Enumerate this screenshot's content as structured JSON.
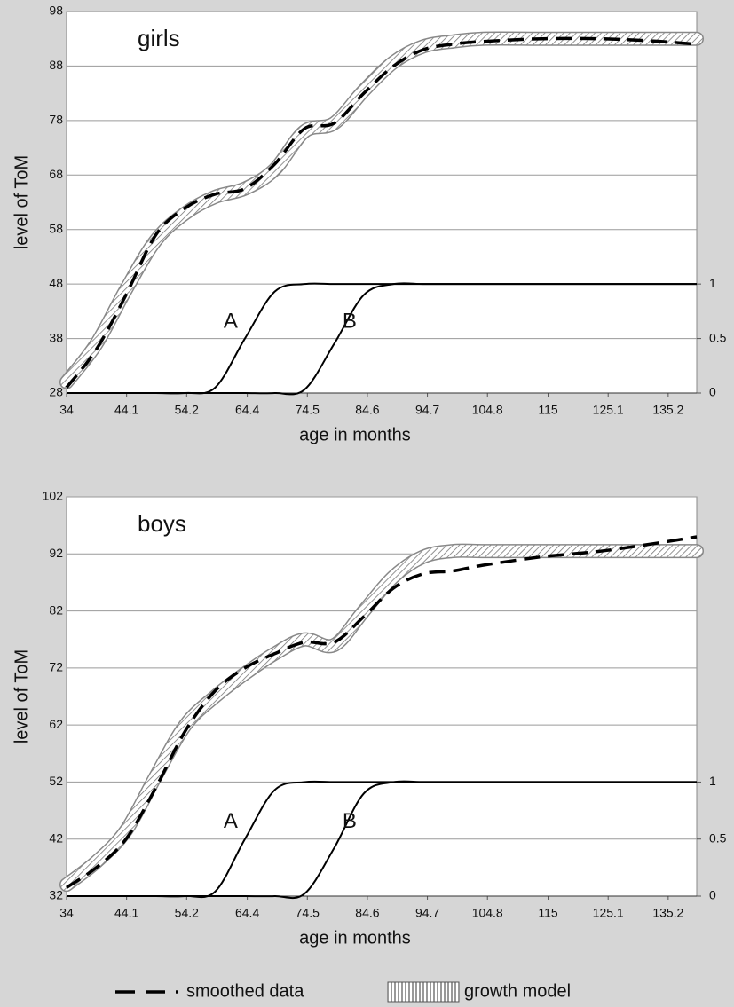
{
  "chart_data": [
    {
      "type": "line",
      "title": "girls",
      "x_label": "age in months",
      "y_label": "level of ToM",
      "x": [
        34,
        39,
        44,
        49,
        54,
        59,
        64,
        69,
        74,
        79,
        84,
        89,
        94,
        99,
        104,
        114,
        124,
        134,
        140
      ],
      "xlim": [
        34,
        140
      ],
      "xticks": [
        34,
        44.1,
        54.2,
        64.4,
        74.5,
        84.6,
        94.7,
        104.8,
        115,
        125.1,
        135.2
      ],
      "ylim": [
        28,
        98
      ],
      "yticks": [
        28,
        38,
        48,
        58,
        68,
        78,
        88,
        98
      ],
      "y2lim": [
        0,
        3.5
      ],
      "y2ticks": [
        0,
        0.5,
        1
      ],
      "grid": true,
      "series": [
        {
          "name": "smoothed data",
          "color": "#000000",
          "style": "dashed",
          "values": [
            29,
            36,
            46,
            57,
            62,
            64.5,
            65.5,
            70,
            76.5,
            77.5,
            83,
            88,
            91,
            92,
            92.5,
            93,
            93,
            92.5,
            92
          ]
        },
        {
          "name": "growth model",
          "color": "#888888",
          "style": "band",
          "values": [
            30,
            37,
            47,
            56,
            61,
            64,
            65.5,
            69,
            76,
            77.5,
            83.5,
            88.7,
            91.6,
            92.5,
            93,
            93,
            93,
            93,
            93
          ]
        },
        {
          "name": "A",
          "color": "#000000",
          "style": "solid",
          "axis": "y2",
          "values": [
            0,
            0,
            0,
            0,
            0,
            0.05,
            0.5,
            0.93,
            1,
            1,
            1,
            1,
            1,
            1,
            1,
            1,
            1,
            1,
            1
          ]
        },
        {
          "name": "B",
          "color": "#000000",
          "style": "solid",
          "axis": "y2",
          "values": [
            0,
            0,
            0,
            0,
            0,
            0,
            0,
            0,
            0.03,
            0.45,
            0.9,
            1,
            1,
            1,
            1,
            1,
            1,
            1,
            1
          ]
        }
      ]
    },
    {
      "type": "line",
      "title": "boys",
      "x_label": "age in months",
      "y_label": "level of ToM",
      "x": [
        34,
        39,
        44,
        49,
        54,
        59,
        64,
        69,
        74,
        79,
        84,
        89,
        94,
        99,
        104,
        114,
        124,
        134,
        140
      ],
      "xlim": [
        34,
        140
      ],
      "xticks": [
        34,
        44.1,
        54.2,
        64.4,
        74.5,
        84.6,
        94.7,
        104.8,
        115,
        125.1,
        135.2
      ],
      "ylim": [
        32,
        102
      ],
      "yticks": [
        32,
        42,
        52,
        62,
        72,
        82,
        92,
        102
      ],
      "y2lim": [
        0,
        3.5
      ],
      "y2ticks": [
        0,
        0.5,
        1
      ],
      "grid": true,
      "series": [
        {
          "name": "smoothed data",
          "color": "#000000",
          "style": "dashed",
          "values": [
            33.5,
            37,
            42,
            51,
            61,
            68,
            72,
            74.5,
            76.5,
            76.5,
            81,
            86,
            88.5,
            89,
            90,
            91.5,
            92.5,
            94,
            95
          ]
        },
        {
          "name": "growth model",
          "color": "#888888",
          "style": "band",
          "values": [
            34,
            38,
            43.5,
            53,
            62,
            67,
            71,
            74.5,
            77,
            76,
            82,
            88,
            91.5,
            92.5,
            92.5,
            92.5,
            92.5,
            92.5,
            92.5
          ]
        },
        {
          "name": "A",
          "color": "#000000",
          "style": "solid",
          "axis": "y2",
          "values": [
            0,
            0,
            0,
            0,
            0,
            0.04,
            0.5,
            0.93,
            1,
            1,
            1,
            1,
            1,
            1,
            1,
            1,
            1,
            1,
            1
          ]
        },
        {
          "name": "B",
          "color": "#000000",
          "style": "solid",
          "axis": "y2",
          "values": [
            0,
            0,
            0,
            0,
            0,
            0,
            0,
            0,
            0.02,
            0.42,
            0.9,
            1,
            1,
            1,
            1,
            1,
            1,
            1,
            1
          ]
        }
      ]
    }
  ]
}
